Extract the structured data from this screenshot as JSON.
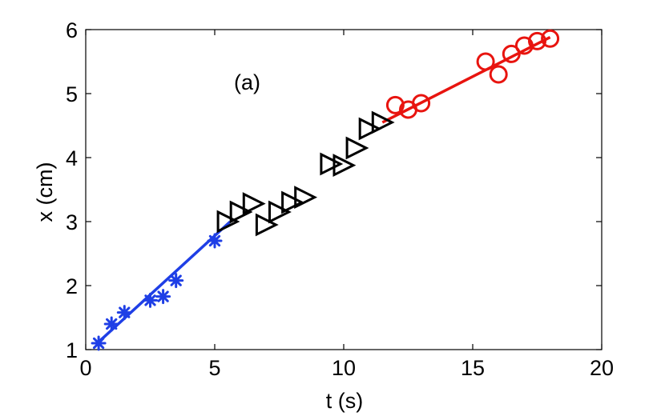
{
  "chart_data": {
    "type": "scatter",
    "xlabel": "t (s)",
    "ylabel": "x (cm)",
    "xlim": [
      0,
      20
    ],
    "ylim": [
      1,
      6
    ],
    "xticks": [
      "0",
      "5",
      "10",
      "15",
      "20"
    ],
    "yticks": [
      "1",
      "2",
      "3",
      "4",
      "5",
      "6"
    ],
    "annotation": "(a)",
    "grid": false,
    "series": [
      {
        "marker": "asterisk",
        "color": "#1f3fe6",
        "points": [
          {
            "x": 0.5,
            "y": 1.1
          },
          {
            "x": 1.0,
            "y": 1.4
          },
          {
            "x": 1.5,
            "y": 1.58
          },
          {
            "x": 2.5,
            "y": 1.77
          },
          {
            "x": 3.0,
            "y": 1.83
          },
          {
            "x": 3.5,
            "y": 2.08
          },
          {
            "x": 5.0,
            "y": 2.7
          }
        ],
        "fit": [
          {
            "x": 0.5,
            "y": 1.12
          },
          {
            "x": 5.6,
            "y": 3.0
          }
        ]
      },
      {
        "marker": "triangle-right",
        "color": "#000000",
        "points": [
          {
            "x": 5.5,
            "y": 3.0
          },
          {
            "x": 6.0,
            "y": 3.15
          },
          {
            "x": 6.5,
            "y": 3.28
          },
          {
            "x": 7.0,
            "y": 2.95
          },
          {
            "x": 7.5,
            "y": 3.15
          },
          {
            "x": 8.0,
            "y": 3.3
          },
          {
            "x": 8.5,
            "y": 3.38
          },
          {
            "x": 9.5,
            "y": 3.9
          },
          {
            "x": 10.0,
            "y": 3.88
          },
          {
            "x": 10.5,
            "y": 4.15
          },
          {
            "x": 11.0,
            "y": 4.45
          },
          {
            "x": 11.5,
            "y": 4.55
          }
        ]
      },
      {
        "marker": "circle",
        "color": "#e8140f",
        "points": [
          {
            "x": 12.0,
            "y": 4.82
          },
          {
            "x": 12.5,
            "y": 4.75
          },
          {
            "x": 13.0,
            "y": 4.85
          },
          {
            "x": 15.5,
            "y": 5.5
          },
          {
            "x": 16.0,
            "y": 5.3
          },
          {
            "x": 16.5,
            "y": 5.62
          },
          {
            "x": 17.0,
            "y": 5.75
          },
          {
            "x": 17.5,
            "y": 5.82
          },
          {
            "x": 18.0,
            "y": 5.86
          }
        ],
        "fit": [
          {
            "x": 11.5,
            "y": 4.55
          },
          {
            "x": 18.0,
            "y": 5.88
          }
        ]
      }
    ]
  }
}
